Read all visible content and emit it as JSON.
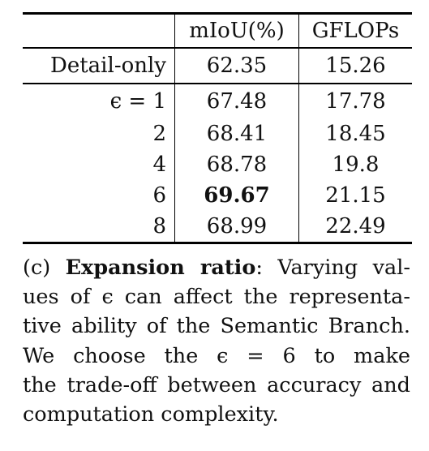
{
  "table": {
    "headers": [
      "",
      "mIoU(%)",
      "GFLOPs"
    ],
    "rows": [
      {
        "label": "Detail-only",
        "miou": "62.35",
        "gflops": "15.26"
      },
      {
        "label": "ϵ = 1",
        "miou": "67.48",
        "gflops": "17.78"
      },
      {
        "label": "2",
        "miou": "68.41",
        "gflops": "18.45"
      },
      {
        "label": "4",
        "miou": "68.78",
        "gflops": "19.8"
      },
      {
        "label": "6",
        "miou": "69.67",
        "gflops": "21.15"
      },
      {
        "label": "8",
        "miou": "68.99",
        "gflops": "22.49"
      }
    ]
  },
  "caption": {
    "prefix": "(c) ",
    "title": "Expansion ratio",
    "lines": [
      ": Varying val-",
      "ues of ϵ can affect the representa-",
      "tive ability of the Semantic Branch.",
      "We choose the ϵ = 6 to make",
      "the trade-off between accuracy and",
      "computation complexity."
    ]
  }
}
